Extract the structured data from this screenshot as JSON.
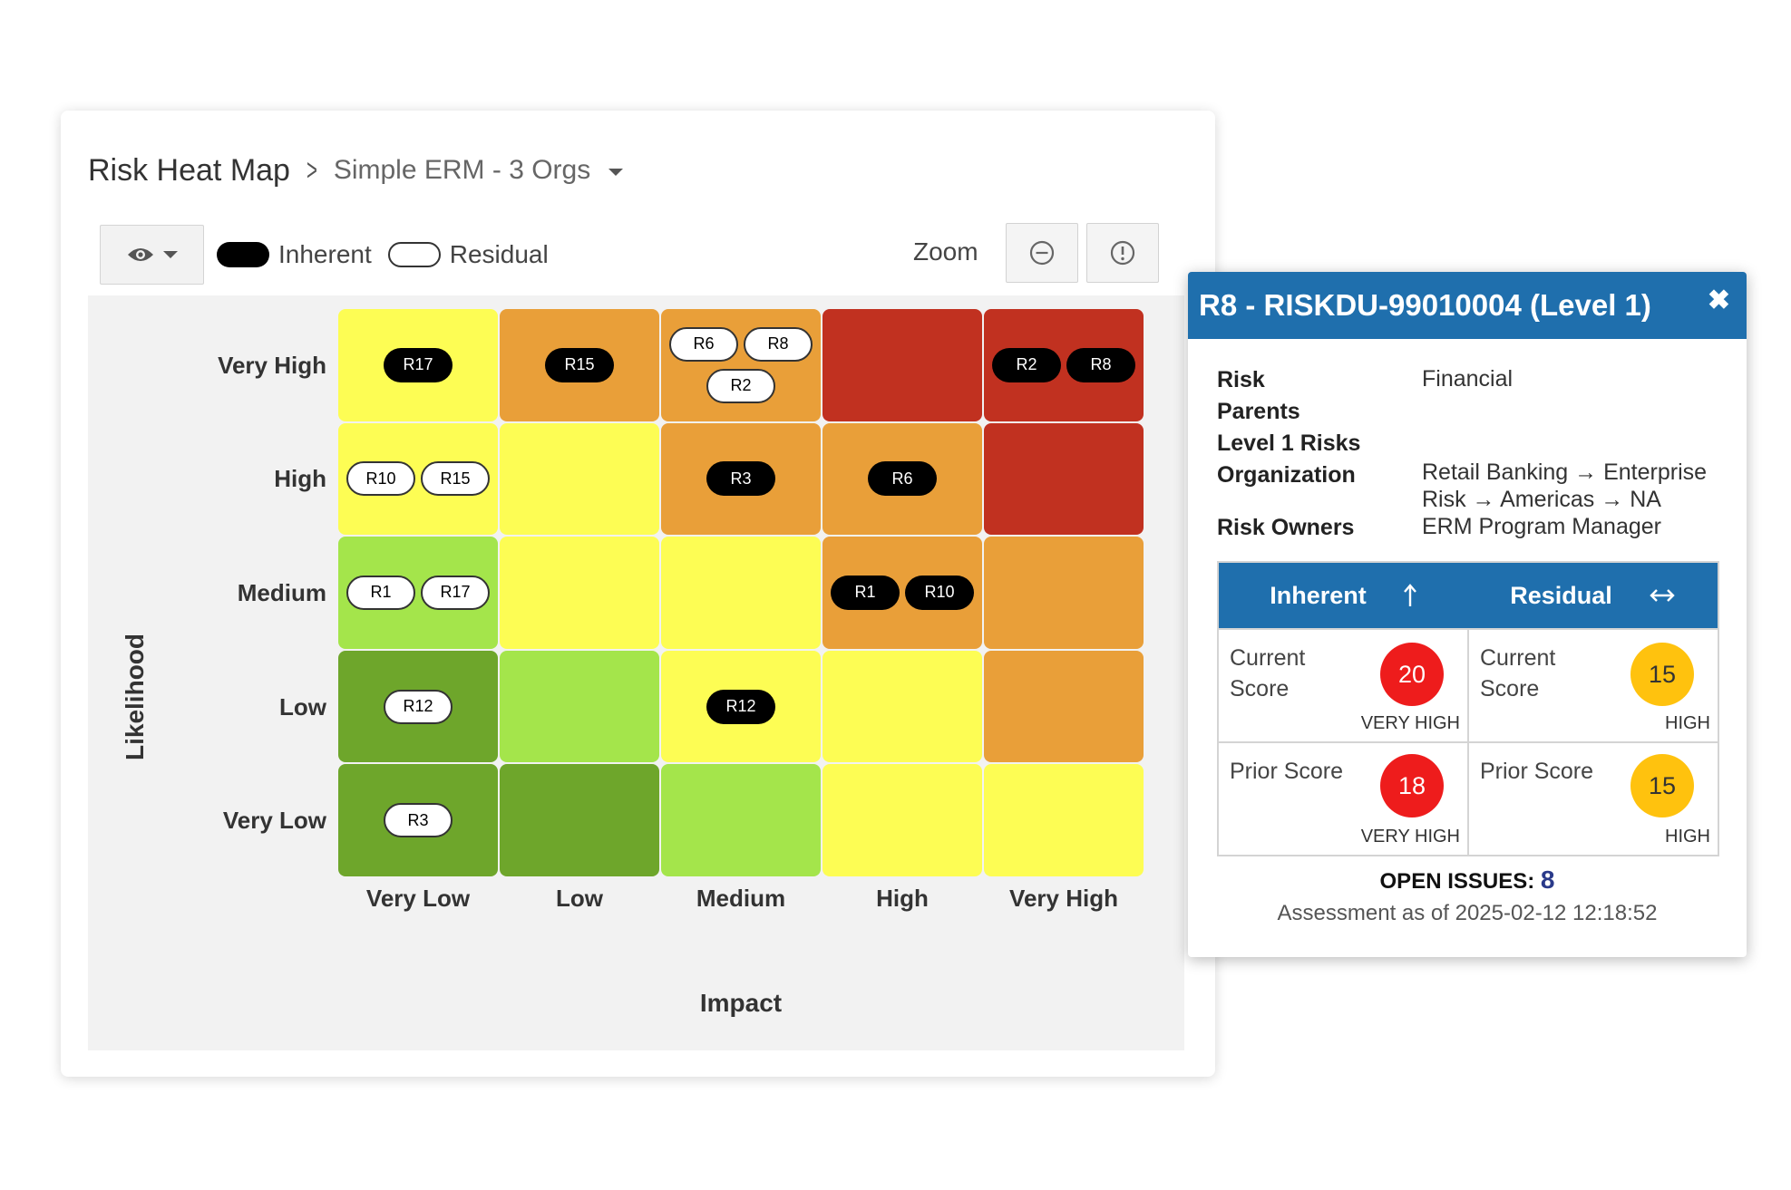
{
  "breadcrumb": {
    "title": "Risk Heat Map",
    "separator": ">",
    "subtitle": "Simple ERM - 3 Orgs"
  },
  "toolbar": {
    "eye_icon": "eye-icon",
    "legend": {
      "inherent": "Inherent",
      "residual": "Residual"
    },
    "zoom_label": "Zoom"
  },
  "heatmap": {
    "y_axis_label": "Likelihood",
    "x_axis_label": "Impact",
    "rows": [
      "Very High",
      "High",
      "Medium",
      "Low",
      "Very Low"
    ],
    "columns": [
      "Very Low",
      "Low",
      "Medium",
      "High",
      "Very High"
    ],
    "colors": {
      "dark_green": "#6ea62b",
      "light_green": "#a4e54b",
      "yellow": "#fdfd54",
      "orange": "#e99f39",
      "red": "#c13120"
    },
    "cells": [
      [
        "yellow",
        "orange",
        "orange",
        "red",
        "red"
      ],
      [
        "yellow",
        "yellow",
        "orange",
        "orange",
        "red"
      ],
      [
        "light_green",
        "yellow",
        "yellow",
        "orange",
        "orange"
      ],
      [
        "dark_green",
        "light_green",
        "yellow",
        "yellow",
        "orange"
      ],
      [
        "dark_green",
        "dark_green",
        "light_green",
        "yellow",
        "yellow"
      ]
    ],
    "markers": [
      [
        [
          {
            "id": "R17",
            "kind": "inherent"
          }
        ],
        [
          {
            "id": "R15",
            "kind": "inherent"
          }
        ],
        [
          {
            "id": "R6",
            "kind": "residual"
          },
          {
            "id": "R8",
            "kind": "residual"
          },
          {
            "id": "R2",
            "kind": "residual"
          }
        ],
        [],
        [
          {
            "id": "R2",
            "kind": "inherent"
          },
          {
            "id": "R8",
            "kind": "inherent"
          }
        ]
      ],
      [
        [
          {
            "id": "R10",
            "kind": "residual"
          },
          {
            "id": "R15",
            "kind": "residual"
          }
        ],
        [],
        [
          {
            "id": "R3",
            "kind": "inherent"
          }
        ],
        [
          {
            "id": "R6",
            "kind": "inherent"
          }
        ],
        []
      ],
      [
        [
          {
            "id": "R1",
            "kind": "residual"
          },
          {
            "id": "R17",
            "kind": "residual"
          }
        ],
        [],
        [],
        [
          {
            "id": "R1",
            "kind": "inherent"
          },
          {
            "id": "R10",
            "kind": "inherent"
          }
        ],
        []
      ],
      [
        [
          {
            "id": "R12",
            "kind": "residual"
          }
        ],
        [],
        [
          {
            "id": "R12",
            "kind": "inherent"
          }
        ],
        [],
        []
      ],
      [
        [
          {
            "id": "R3",
            "kind": "residual"
          }
        ],
        [],
        [],
        [],
        []
      ]
    ]
  },
  "popup": {
    "title": "R8 - RISKDU-99010004 (Level 1)",
    "close": "✖",
    "details": {
      "risk_label": "Risk",
      "risk_value": "Financial",
      "parents_label": "Parents",
      "level1_label": "Level 1 Risks",
      "org_label": "Organization",
      "org_value": "Retail Banking → Enterprise Risk → Americas → NA",
      "owners_label": "Risk Owners",
      "owners_value": "ERM Program Manager"
    },
    "table": {
      "inherent_header": "Inherent",
      "inherent_icon": "sort-up-arrow-icon",
      "residual_header": "Residual",
      "residual_icon": "left-right-arrow-icon",
      "inherent_current_label": "Current Score",
      "inherent_current_score": "20",
      "inherent_current_level": "VERY HIGH",
      "residual_current_label": "Current Score",
      "residual_current_score": "15",
      "residual_current_level": "HIGH",
      "inherent_prior_label": "Prior Score",
      "inherent_prior_score": "18",
      "inherent_prior_level": "VERY HIGH",
      "residual_prior_label": "Prior Score",
      "residual_prior_score": "15",
      "residual_prior_level": "HIGH",
      "red": "#ee1c1c",
      "yellow": "#ffc20e"
    },
    "open_issues_label": "OPEN ISSUES:",
    "open_issues_count": "8",
    "assessment": "Assessment as of 2025-02-12 12:18:52"
  }
}
